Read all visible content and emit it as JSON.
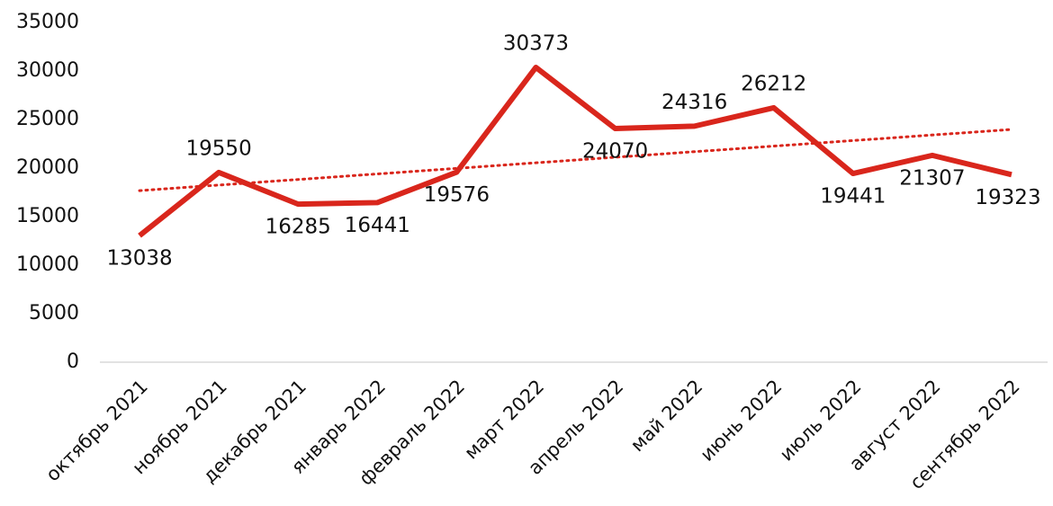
{
  "chart_data": {
    "type": "line",
    "categories": [
      "октябрь 2021",
      "ноябрь 2021",
      "декабрь 2021",
      "январь 2022",
      "февраль 2022",
      "март 2022",
      "апрель 2022",
      "май 2022",
      "июнь 2022",
      "июль 2022",
      "август 2022",
      "сентябрь 2022"
    ],
    "values": [
      13038,
      19550,
      16285,
      16441,
      19576,
      30373,
      24070,
      24316,
      26212,
      19441,
      21307,
      19323
    ],
    "color": "#d9261c",
    "ylim": [
      0,
      35000
    ],
    "yticks": [
      0,
      5000,
      10000,
      15000,
      20000,
      25000,
      30000,
      35000
    ],
    "grid": false,
    "trendline": true,
    "data_labels": true
  }
}
